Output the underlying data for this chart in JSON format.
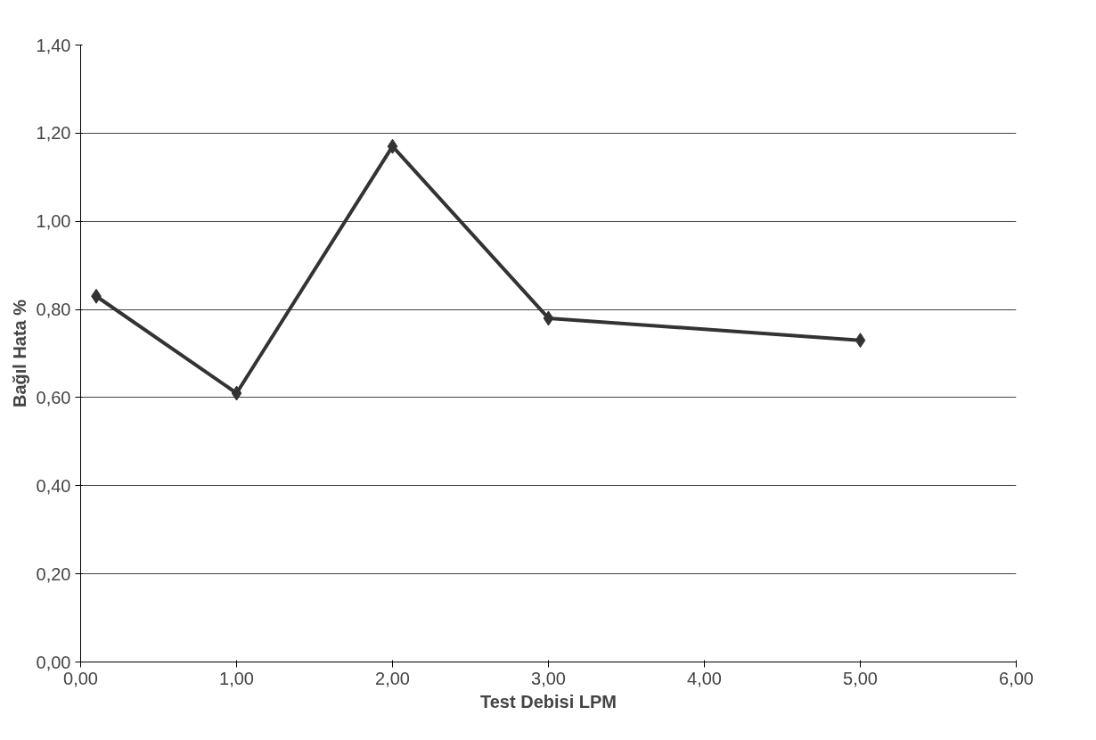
{
  "chart_data": {
    "type": "line",
    "xlabel": "Test Debisi LPM",
    "ylabel": "Bağıl Hata %",
    "x": [
      0.1,
      1.0,
      2.0,
      3.0,
      5.0
    ],
    "series": [
      {
        "color": "#333333",
        "values": [
          0.83,
          0.61,
          1.17,
          0.78,
          0.73
        ]
      }
    ],
    "xlim": [
      0,
      6
    ],
    "ylim": [
      0,
      1.4
    ],
    "xticks": [
      {
        "value": 0,
        "label": "0,00"
      },
      {
        "value": 1,
        "label": "1,00"
      },
      {
        "value": 2,
        "label": "2,00"
      },
      {
        "value": 3,
        "label": "3,00"
      },
      {
        "value": 4,
        "label": "4,00"
      },
      {
        "value": 5,
        "label": "5,00"
      },
      {
        "value": 6,
        "label": "6,00"
      }
    ],
    "yticks": [
      {
        "value": 0,
        "label": "0,00"
      },
      {
        "value": 0.2,
        "label": "0,20"
      },
      {
        "value": 0.4,
        "label": "0,40"
      },
      {
        "value": 0.6,
        "label": "0,60"
      },
      {
        "value": 0.8,
        "label": "0,80"
      },
      {
        "value": 1.0,
        "label": "1,00"
      },
      {
        "value": 1.2,
        "label": "1,20"
      },
      {
        "value": 1.4,
        "label": "1,40"
      }
    ],
    "grid": "y",
    "marker": "diamond",
    "line_style": "solid"
  }
}
